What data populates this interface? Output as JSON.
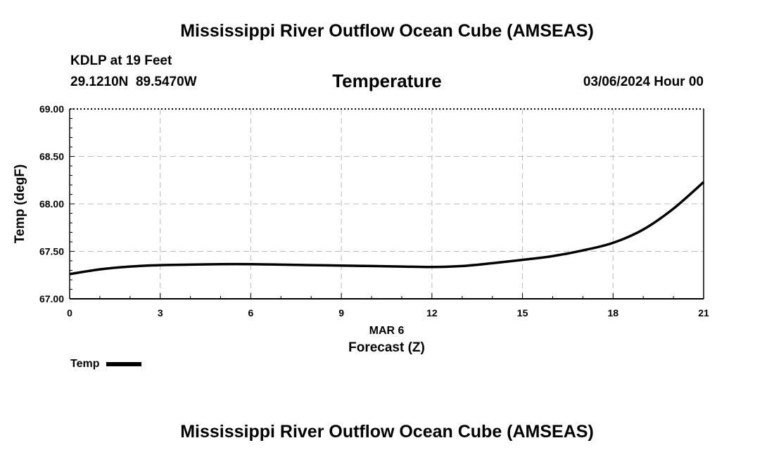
{
  "header": {
    "main_title": "Mississippi River Outflow Ocean Cube (AMSEAS)",
    "station": "KDLP at 19 Feet",
    "coords": "29.1210N  89.5470W",
    "chart_title": "Temperature",
    "datetime": "03/06/2024 Hour 00"
  },
  "footer": {
    "title": "Mississippi River Outflow Ocean Cube (AMSEAS)"
  },
  "legend": {
    "entry": "Temp"
  },
  "chart_data": {
    "type": "line",
    "title": "Temperature",
    "xlabel": "Forecast (Z)",
    "xdate_label": "MAR 6",
    "ylabel": "Temp (degF)",
    "xlim": [
      0,
      21
    ],
    "ylim": [
      67.0,
      69.0
    ],
    "xticks": [
      0,
      3,
      6,
      9,
      12,
      15,
      18,
      21
    ],
    "xtick_labels": [
      "0",
      "3",
      "6",
      "9",
      "12",
      "15",
      "18",
      "21"
    ],
    "yticks": [
      67.0,
      67.5,
      68.0,
      68.5,
      69.0
    ],
    "ytick_labels": [
      "67.00",
      "67.50",
      "68.00",
      "68.50",
      "69.00"
    ],
    "grid": true,
    "legend_position": "bottom-left",
    "series": [
      {
        "name": "Temp",
        "color": "#000000",
        "x": [
          0,
          1,
          2,
          3,
          4,
          5,
          6,
          7,
          8,
          9,
          10,
          11,
          12,
          13,
          14,
          15,
          16,
          17,
          18,
          19,
          20,
          21
        ],
        "values": [
          67.26,
          67.31,
          67.34,
          67.355,
          67.36,
          67.365,
          67.365,
          67.36,
          67.355,
          67.35,
          67.345,
          67.34,
          67.335,
          67.345,
          67.375,
          67.41,
          67.45,
          67.51,
          67.59,
          67.73,
          67.95,
          68.23
        ]
      }
    ]
  }
}
